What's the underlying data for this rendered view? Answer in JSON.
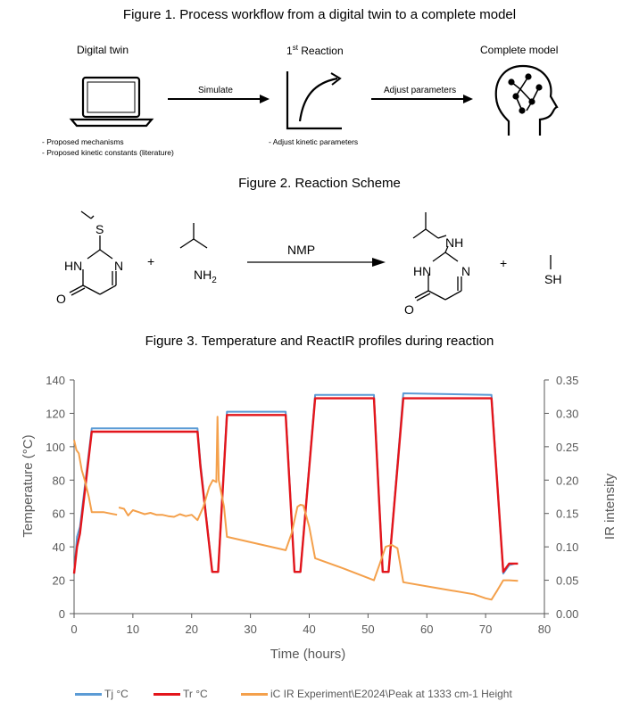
{
  "figures": {
    "fig1": {
      "caption": "Figure 1. Process workflow from a digital twin to a complete model",
      "digital_twin": "Digital twin",
      "reaction_prefix": "1",
      "reaction_sup": "st",
      "reaction_suffix": " Reaction",
      "complete_model": "Complete model",
      "arrow1": "Simulate",
      "arrow2": "Adjust parameters",
      "notes_left": [
        "- Proposed mechanisms",
        "- Proposed kinetic constants (literature)"
      ],
      "note_mid": "- Adjust kinetic parameters",
      "icons": [
        "laptop-icon",
        "curve-graph-icon",
        "brain-head-icon"
      ]
    },
    "fig2": {
      "caption": "Figure 2. Reaction Scheme",
      "reagent": "NMP",
      "plus": "+",
      "atoms": {
        "S": "S",
        "HN": "HN",
        "N": "N",
        "O": "O",
        "NH2": "NH",
        "sub2": "2",
        "NH": "NH",
        "SH": "SH"
      }
    },
    "fig3": {
      "caption": "Figure 3. Temperature and ReactIR profiles during reaction"
    }
  },
  "chart_data": {
    "type": "line",
    "xlabel": "Time (hours)",
    "ylabel": "Temperature (°C)",
    "y2label": "IR intensity",
    "xlim": [
      0,
      80
    ],
    "ylim": [
      0,
      140
    ],
    "y2lim": [
      0,
      0.35
    ],
    "x_ticks": [
      0,
      10,
      20,
      30,
      40,
      50,
      60,
      70,
      80
    ],
    "y_ticks": [
      0,
      20,
      40,
      60,
      80,
      100,
      120,
      140
    ],
    "y2_ticks": [
      "0.00",
      "0.05",
      "0.10",
      "0.15",
      "0.20",
      "0.25",
      "0.30",
      "0.35"
    ],
    "grid": false,
    "legend_position": "bottom",
    "series": [
      {
        "name": "Tj °C",
        "axis": "left",
        "color": "#5B9BD5",
        "x": [
          0,
          0.5,
          1,
          3,
          21,
          21.5,
          23.5,
          24.5,
          26,
          36,
          37.5,
          38.5,
          41,
          51,
          52.5,
          53.5,
          56,
          71,
          73,
          74,
          75
        ],
        "y": [
          24,
          46,
          52,
          111,
          111,
          90,
          25,
          25,
          121,
          121,
          25,
          25,
          131,
          131,
          25,
          25,
          132,
          131,
          24,
          29,
          30
        ]
      },
      {
        "name": "Tr °C",
        "axis": "left",
        "color": "#E3151B",
        "x": [
          0,
          0.5,
          1,
          3,
          21,
          21.5,
          23.5,
          24.5,
          26,
          36,
          37.5,
          38.5,
          41,
          51,
          52.5,
          53.5,
          56,
          71,
          73,
          74,
          75.5
        ],
        "y": [
          24,
          40,
          48,
          109,
          109,
          88,
          25,
          25,
          119,
          119,
          25,
          25,
          129,
          129,
          25,
          25,
          129,
          129,
          25,
          30,
          30
        ]
      },
      {
        "name": "iC IR Experiment\\E2024\\Peak at 1333 cm-1 Height",
        "axis": "right",
        "color": "#F4A04B",
        "segments": [
          {
            "x": [
              0,
              0.4,
              0.8,
              1.3,
              1.8,
              2.5,
              3,
              5,
              7.3
            ],
            "y": [
              0.26,
              0.245,
              0.24,
              0.215,
              0.2,
              0.175,
              0.152,
              0.152,
              0.148
            ]
          },
          {
            "x": [
              7.6,
              8.5,
              9.2,
              10,
              11,
              12,
              13,
              14,
              15,
              16,
              17,
              18,
              19,
              20,
              21,
              22,
              23,
              23.6,
              24.2,
              24.4,
              24.6,
              25.5,
              26,
              31,
              36,
              37,
              38,
              38.5,
              39,
              40,
              41,
              46,
              51,
              52,
              53,
              54,
              55,
              56,
              62,
              68,
              70,
              71,
              72,
              73,
              74,
              75.5
            ],
            "y": [
              0.159,
              0.157,
              0.147,
              0.155,
              0.152,
              0.149,
              0.151,
              0.148,
              0.148,
              0.146,
              0.145,
              0.149,
              0.146,
              0.148,
              0.14,
              0.16,
              0.19,
              0.2,
              0.197,
              0.295,
              0.2,
              0.16,
              0.115,
              0.105,
              0.095,
              0.12,
              0.16,
              0.163,
              0.162,
              0.13,
              0.083,
              0.067,
              0.05,
              0.075,
              0.1,
              0.103,
              0.098,
              0.047,
              0.038,
              0.029,
              0.023,
              0.021,
              0.035,
              0.05,
              0.05,
              0.049
            ]
          }
        ]
      }
    ]
  }
}
